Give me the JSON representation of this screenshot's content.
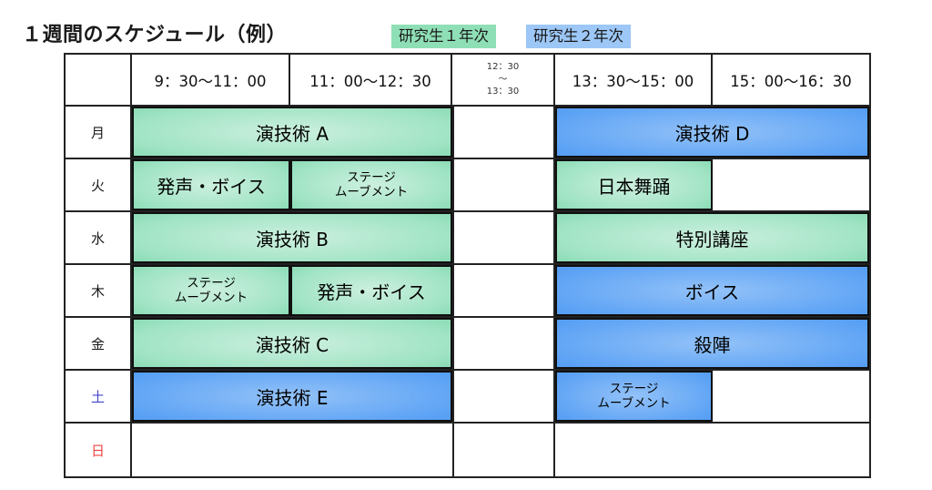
{
  "title": "１週間のスケジュール（例）",
  "legend": {
    "year1": {
      "label": "研究生１年次",
      "color": "#8fdfb6"
    },
    "year2": {
      "label": "研究生２年次",
      "color": "#9cc7f6"
    }
  },
  "header": {
    "corner": "",
    "times": [
      "9：30～11：00",
      "11：00～12：30",
      "12：30\n～\n13：30",
      "13：30～15：00",
      "15：00～16：30"
    ]
  },
  "colors": {
    "year1_block_center": "#ccf0de",
    "year1_block_edge": "#4ec289",
    "year2_block_center": "#93c2f8",
    "year2_block_edge": "#2b85f0",
    "saturday_text": "#4444cc",
    "sunday_text": "#ee4444",
    "grid_line": "#222222"
  },
  "rows": [
    {
      "day": "月",
      "am": [
        {
          "label": "演技術 A",
          "year": 1,
          "span": 2
        }
      ],
      "pm": [
        {
          "label": "演技術 D",
          "year": 2,
          "span": 2
        }
      ]
    },
    {
      "day": "火",
      "am": [
        {
          "label": "発声・ボイス",
          "year": 1,
          "span": 1
        },
        {
          "label": "ステージ\nムーブメント",
          "year": 1,
          "span": 1
        }
      ],
      "pm": [
        {
          "label": "日本舞踊",
          "year": 1,
          "span": 1
        }
      ]
    },
    {
      "day": "水",
      "am": [
        {
          "label": "演技術 B",
          "year": 1,
          "span": 2
        }
      ],
      "pm": [
        {
          "label": "特別講座",
          "year": 1,
          "span": 2
        }
      ]
    },
    {
      "day": "木",
      "am": [
        {
          "label": "ステージ\nムーブメント",
          "year": 1,
          "span": 1
        },
        {
          "label": "発声・ボイス",
          "year": 1,
          "span": 1
        }
      ],
      "pm": [
        {
          "label": "ボイス",
          "year": 2,
          "span": 2
        }
      ]
    },
    {
      "day": "金",
      "am": [
        {
          "label": "演技術 C",
          "year": 1,
          "span": 2
        }
      ],
      "pm": [
        {
          "label": "殺陣",
          "year": 2,
          "span": 2
        }
      ]
    },
    {
      "day": "土",
      "day_color": "#4444cc",
      "am": [
        {
          "label": "演技術 E",
          "year": 2,
          "span": 2
        }
      ],
      "pm": [
        {
          "label": "ステージ\nムーブメント",
          "year": 2,
          "span": 1
        }
      ]
    },
    {
      "day": "日",
      "day_color": "#ee4444",
      "am": [],
      "pm": []
    }
  ]
}
